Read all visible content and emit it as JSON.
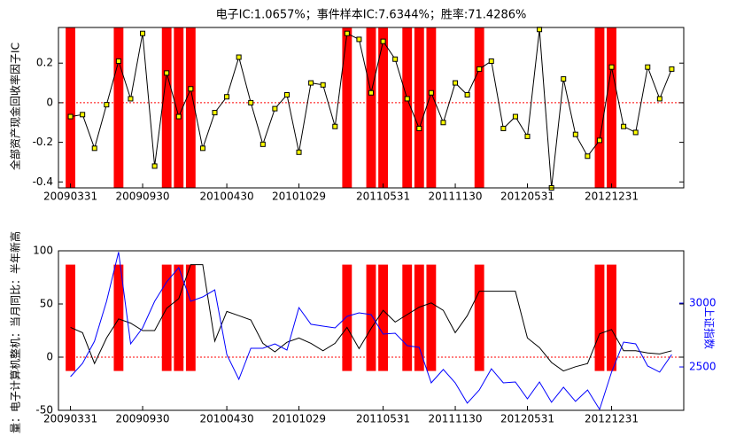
{
  "chart_data": [
    {
      "type": "line",
      "title": "电子IC:1.0657%；事件样本IC:7.6344%；胜率:71.4286%",
      "ylabel": "全部资产现金回收率因子IC",
      "categories": [
        "20090331",
        null,
        null,
        null,
        null,
        null,
        "20090930",
        null,
        null,
        null,
        null,
        null,
        null,
        "20100430",
        null,
        null,
        null,
        null,
        null,
        "20101029",
        null,
        null,
        null,
        null,
        null,
        null,
        "20110531",
        null,
        null,
        null,
        null,
        null,
        "20111130",
        null,
        null,
        null,
        null,
        null,
        "20120531",
        null,
        null,
        null,
        null,
        null,
        null,
        "20121231",
        null,
        null,
        null,
        null,
        null
      ],
      "series": [
        {
          "color": "#000000",
          "marker": "square",
          "marker_color": "#ffff00",
          "values": [
            -0.07,
            -0.06,
            -0.23,
            -0.01,
            0.21,
            0.02,
            0.35,
            -0.32,
            0.15,
            -0.07,
            0.07,
            -0.23,
            -0.05,
            0.03,
            0.23,
            0.0,
            -0.21,
            -0.03,
            0.04,
            -0.25,
            0.1,
            0.09,
            -0.12,
            0.35,
            0.32,
            0.05,
            0.31,
            0.22,
            0.02,
            -0.13,
            0.05,
            -0.1,
            0.1,
            0.04,
            0.17,
            0.21,
            -0.13,
            -0.07,
            -0.17,
            0.37,
            -0.43,
            0.12,
            -0.16,
            -0.27,
            -0.19,
            0.18,
            -0.12,
            -0.15,
            0.18,
            0.02,
            0.17
          ]
        }
      ],
      "events": [
        0,
        4,
        8,
        9,
        10,
        23,
        25,
        26,
        28,
        29,
        30,
        34,
        44,
        45
      ],
      "event_color": "#ff0000",
      "ylim": [
        -0.43,
        0.38
      ],
      "yticks": [
        -0.4,
        -0.2,
        0,
        0.2
      ]
    },
    {
      "type": "line",
      "ylabel": "量：电子计算机整机：当月同比：半年新高",
      "y2label": "上证指数",
      "categories": [
        "20090331",
        null,
        null,
        null,
        null,
        null,
        "20090930",
        null,
        null,
        null,
        null,
        null,
        null,
        "20100430",
        null,
        null,
        null,
        null,
        null,
        "20101029",
        null,
        null,
        null,
        null,
        null,
        null,
        "20110531",
        null,
        null,
        null,
        null,
        null,
        "20111130",
        null,
        null,
        null,
        null,
        null,
        "20120531",
        null,
        null,
        null,
        null,
        null,
        null,
        "20121231",
        null,
        null,
        null,
        null,
        null
      ],
      "series": [
        {
          "color": "#000000",
          "values": [
            28,
            23,
            -6,
            18,
            36,
            32,
            25,
            25,
            46,
            55,
            87,
            87,
            15,
            43,
            39,
            35,
            13,
            5,
            14,
            18,
            13,
            6,
            13,
            28,
            8,
            27,
            44,
            33,
            40,
            47,
            51,
            44,
            23,
            39,
            62,
            62,
            62,
            62,
            18,
            9,
            -5,
            -13,
            -9,
            -6,
            22,
            26,
            6,
            6,
            4,
            3,
            6
          ]
        },
        {
          "color": "#0000ff",
          "axis": "y2",
          "values": [
            2424,
            2528,
            2702,
            3014,
            3400,
            2681,
            2806,
            3014,
            3167,
            3278,
            3014,
            3049,
            3104,
            2597,
            2403,
            2646,
            2646,
            2681,
            2632,
            2965,
            2834,
            2820,
            2806,
            2896,
            2924,
            2910,
            2757,
            2764,
            2667,
            2653,
            2375,
            2480,
            2375,
            2216,
            2320,
            2486,
            2375,
            2382,
            2250,
            2382,
            2223,
            2341,
            2230,
            2320,
            2167,
            2459,
            2695,
            2681,
            2507,
            2459,
            2597
          ]
        }
      ],
      "events": [
        0,
        4,
        8,
        9,
        10,
        23,
        25,
        26,
        28,
        29,
        30,
        34,
        44,
        45
      ],
      "event_color": "#ff0000",
      "ylim": [
        -50,
        100
      ],
      "yticks": [
        -50,
        0,
        50,
        100
      ],
      "y2lim": [
        2160,
        3410
      ],
      "y2ticks": [
        2500,
        3000
      ]
    }
  ]
}
